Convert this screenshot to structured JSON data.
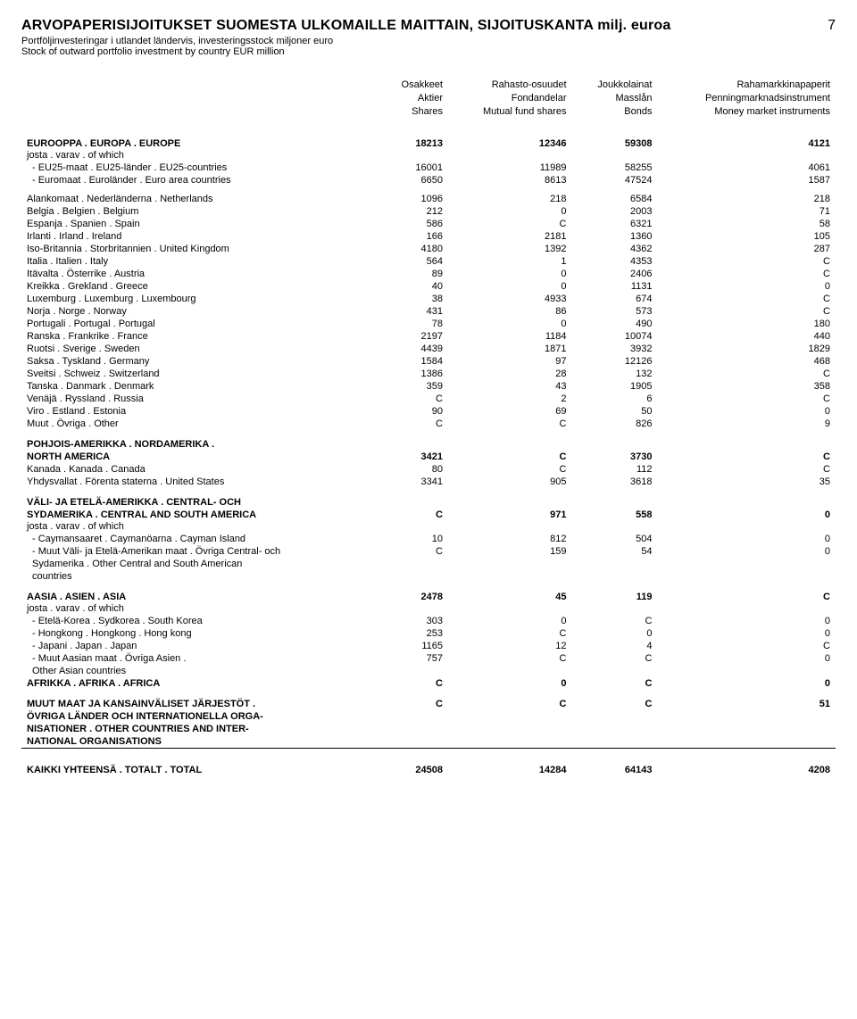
{
  "page_number": "7",
  "title_line1": "ARVOPAPERISIJOITUKSET SUOMESTA ULKOMAILLE MAITTAIN, SIJOITUSKANTA milj. euroa",
  "title_line2": "Portföljinvesteringar i utlandet ländervis, investeringsstock miljoner euro",
  "title_line3": "Stock of outward portfolio investment by country EUR million",
  "cols": {
    "c1a": "Osakkeet",
    "c1b": "Aktier",
    "c1c": "Shares",
    "c2a": "Rahasto-osuudet",
    "c2b": "Fondandelar",
    "c2c": "Mutual fund shares",
    "c3a": "Joukkolainat",
    "c3b": "Masslån",
    "c3c": "Bonds",
    "c4a": "Rahamarkkinapaperit",
    "c4b": "Penningmarknadsinstrument",
    "c4c": "Money market instruments"
  },
  "europe": {
    "label": "EUROOPPA . EUROPA . EUROPE",
    "v": [
      "18213",
      "12346",
      "59308",
      "4121"
    ]
  },
  "ofwhich": "josta . varav . of which",
  "eu25": {
    "label": " - EU25-maat . EU25-länder . EU25-countries",
    "v": [
      "16001",
      "11989",
      "58255",
      "4061"
    ]
  },
  "euroarea": {
    "label": " - Euromaat . Euroländer . Euro area countries",
    "v": [
      "6650",
      "8613",
      "47524",
      "1587"
    ]
  },
  "rows_eu": [
    {
      "l": "Alankomaat . Nederländerna . Netherlands",
      "v": [
        "1096",
        "218",
        "6584",
        "218"
      ]
    },
    {
      "l": "Belgia . Belgien . Belgium",
      "v": [
        "212",
        "0",
        "2003",
        "71"
      ]
    },
    {
      "l": "Espanja . Spanien . Spain",
      "v": [
        "586",
        "C",
        "6321",
        "58"
      ]
    },
    {
      "l": "Irlanti . Irland . Ireland",
      "v": [
        "166",
        "2181",
        "1360",
        "105"
      ]
    },
    {
      "l": "Iso-Britannia . Storbritannien . United Kingdom",
      "v": [
        "4180",
        "1392",
        "4362",
        "287"
      ]
    },
    {
      "l": "Italia . Italien . Italy",
      "v": [
        "564",
        "1",
        "4353",
        "C"
      ]
    },
    {
      "l": "Itävalta . Österrike . Austria",
      "v": [
        "89",
        "0",
        "2406",
        "C"
      ]
    },
    {
      "l": "Kreikka . Grekland . Greece",
      "v": [
        "40",
        "0",
        "1131",
        "0"
      ]
    },
    {
      "l": "Luxemburg . Luxemburg . Luxembourg",
      "v": [
        "38",
        "4933",
        "674",
        "C"
      ]
    },
    {
      "l": "Norja . Norge . Norway",
      "v": [
        "431",
        "86",
        "573",
        "C"
      ]
    },
    {
      "l": "Portugali . Portugal . Portugal",
      "v": [
        "78",
        "0",
        "490",
        "180"
      ]
    },
    {
      "l": "Ranska . Frankrike . France",
      "v": [
        "2197",
        "1184",
        "10074",
        "440"
      ]
    },
    {
      "l": "Ruotsi . Sverige . Sweden",
      "v": [
        "4439",
        "1871",
        "3932",
        "1829"
      ]
    },
    {
      "l": "Saksa . Tyskland . Germany",
      "v": [
        "1584",
        "97",
        "12126",
        "468"
      ]
    },
    {
      "l": "Sveitsi . Schweiz . Switzerland",
      "v": [
        "1386",
        "28",
        "132",
        "C"
      ]
    },
    {
      "l": "Tanska . Danmark . Denmark",
      "v": [
        "359",
        "43",
        "1905",
        "358"
      ]
    },
    {
      "l": "Venäjä . Ryssland . Russia",
      "v": [
        "C",
        "2",
        "6",
        "C"
      ]
    },
    {
      "l": "Viro . Estland . Estonia",
      "v": [
        "90",
        "69",
        "50",
        "0"
      ]
    },
    {
      "l": "Muut . Övriga . Other",
      "v": [
        "C",
        "C",
        "826",
        "9"
      ]
    }
  ],
  "na_header1": "POHJOIS-AMERIKKA . NORDAMERIKA .",
  "na_header2": "NORTH AMERICA",
  "na": {
    "v": [
      "3421",
      "C",
      "3730",
      "C"
    ]
  },
  "rows_na": [
    {
      "l": "Kanada . Kanada . Canada",
      "v": [
        "80",
        "C",
        "112",
        "C"
      ]
    },
    {
      "l": "Yhdysvallat . Förenta staterna . United States",
      "v": [
        "3341",
        "905",
        "3618",
        "35"
      ]
    }
  ],
  "csa_h1": "VÄLI- JA ETELÄ-AMERIKKA . CENTRAL- OCH",
  "csa_h2": "SYDAMERIKA . CENTRAL AND SOUTH AMERICA",
  "csa": {
    "v": [
      "C",
      "971",
      "558",
      "0"
    ]
  },
  "csa_sub": [
    {
      "l": " - Caymansaaret . Caymanöarna . Cayman Island",
      "v": [
        "10",
        "812",
        "504",
        "0"
      ]
    },
    {
      "l": " - Muut Väli- ja Etelä-Amerikan maat . Övriga Central- och",
      "v": [
        "C",
        "159",
        "54",
        "0"
      ]
    }
  ],
  "csa_cont1": "   Sydamerika . Other Central and South American",
  "csa_cont2": "   countries",
  "asia": {
    "label": "AASIA . ASIEN . ASIA",
    "v": [
      "2478",
      "45",
      "119",
      "C"
    ]
  },
  "rows_asia": [
    {
      "l": " - Etelä-Korea . Sydkorea . South Korea",
      "v": [
        "303",
        "0",
        "C",
        "0"
      ]
    },
    {
      "l": " - Hongkong . Hongkong . Hong kong",
      "v": [
        "253",
        "C",
        "0",
        "0"
      ]
    },
    {
      "l": " - Japani . Japan . Japan",
      "v": [
        "1165",
        "12",
        "4",
        "C"
      ]
    },
    {
      "l": " - Muut  Aasian maat . Övriga Asien .",
      "v": [
        "757",
        "C",
        "C",
        "0"
      ]
    }
  ],
  "asia_cont": "   Other Asian countries",
  "africa": {
    "label": "AFRIKKA . AFRIKA . AFRICA",
    "v": [
      "C",
      "0",
      "C",
      "0"
    ]
  },
  "other_h1": "MUUT MAAT JA KANSAINVÄLISET JÄRJESTÖT .",
  "other_h2": "ÖVRIGA LÄNDER OCH INTERNATIONELLA ORGA-",
  "other_h3": "NISATIONER . OTHER COUNTRIES AND INTER-",
  "other_h4": "NATIONAL ORGANISATIONS",
  "other": {
    "v": [
      "C",
      "C",
      "C",
      "51"
    ]
  },
  "grand": {
    "label": "KAIKKI YHTEENSÄ . TOTALT . TOTAL",
    "v": [
      "24508",
      "14284",
      "64143",
      "4208"
    ]
  }
}
